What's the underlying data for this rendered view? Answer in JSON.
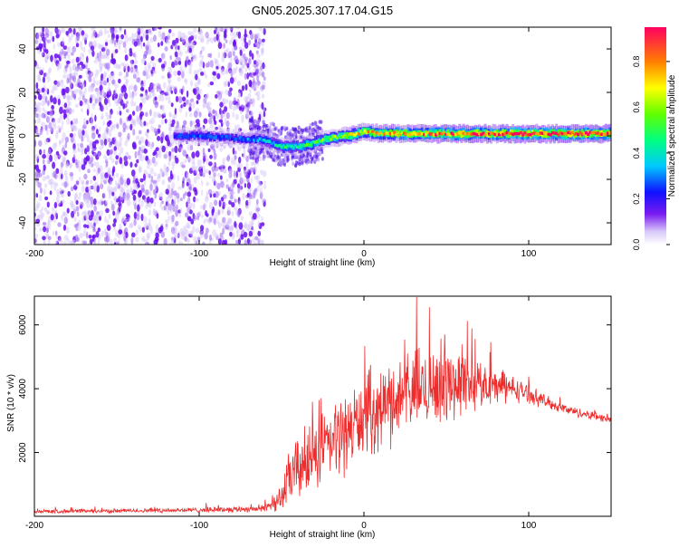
{
  "chart_data": [
    {
      "type": "heatmap",
      "title": "GN05.2025.307.17.04.G15",
      "xlabel": "Height of straight line (km)",
      "ylabel": "Frequency (Hz)",
      "xlim": [
        -200,
        150
      ],
      "ylim": [
        -50,
        50
      ],
      "x_ticks": [
        -200,
        -100,
        0,
        100
      ],
      "y_ticks": [
        -40,
        -20,
        0,
        20,
        40
      ],
      "noise_region_x": [
        -200,
        -60
      ],
      "signal_track": {
        "x": [
          -110,
          -100,
          -80,
          -60,
          -50,
          -40,
          -30,
          -20,
          -10,
          0,
          10,
          20,
          40,
          60,
          80,
          100,
          120,
          150
        ],
        "freq": [
          0,
          0,
          -1,
          -2,
          -5,
          -5,
          -3,
          -1,
          0,
          2,
          1,
          1,
          1,
          1,
          1,
          1,
          1,
          1
        ],
        "amplitude": [
          0.25,
          0.3,
          0.25,
          0.35,
          0.45,
          0.5,
          0.55,
          0.6,
          0.7,
          0.75,
          0.75,
          0.8,
          0.85,
          0.9,
          0.9,
          0.95,
          0.95,
          0.95
        ]
      },
      "colorbar": {
        "label": "Normalized spectral amplitude",
        "range": [
          0,
          0.95
        ],
        "ticks": [
          0.0,
          0.2,
          0.4,
          0.6,
          0.8
        ]
      }
    },
    {
      "type": "line",
      "xlabel": "Height of straight line (km)",
      "ylabel": "SNR (10 * v/v)",
      "xlim": [
        -200,
        150
      ],
      "ylim": [
        0,
        6900
      ],
      "x_ticks": [
        -200,
        -100,
        0,
        100
      ],
      "y_ticks": [
        2000,
        4000,
        6000
      ],
      "series": [
        {
          "name": "SNR",
          "color": "#ee2c2c",
          "envelope_x": [
            -200,
            -150,
            -100,
            -70,
            -60,
            -50,
            -45,
            -40,
            -30,
            -20,
            -10,
            0,
            10,
            20,
            30,
            40,
            50,
            60,
            70,
            80,
            90,
            100,
            110,
            120,
            130,
            140,
            150
          ],
          "envelope_mean": [
            150,
            170,
            200,
            230,
            250,
            600,
            1200,
            1500,
            1900,
            2300,
            2700,
            3100,
            3400,
            3700,
            3900,
            4100,
            4200,
            4200,
            4150,
            4100,
            4000,
            3850,
            3600,
            3400,
            3250,
            3150,
            3050
          ],
          "envelope_spread": [
            80,
            80,
            100,
            120,
            150,
            500,
            1100,
            1300,
            1400,
            1500,
            1500,
            1500,
            1500,
            1600,
            1600,
            1600,
            1500,
            1300,
            900,
            700,
            500,
            350,
            250,
            200,
            180,
            170,
            160
          ],
          "peak_value": 6900
        }
      ]
    }
  ]
}
